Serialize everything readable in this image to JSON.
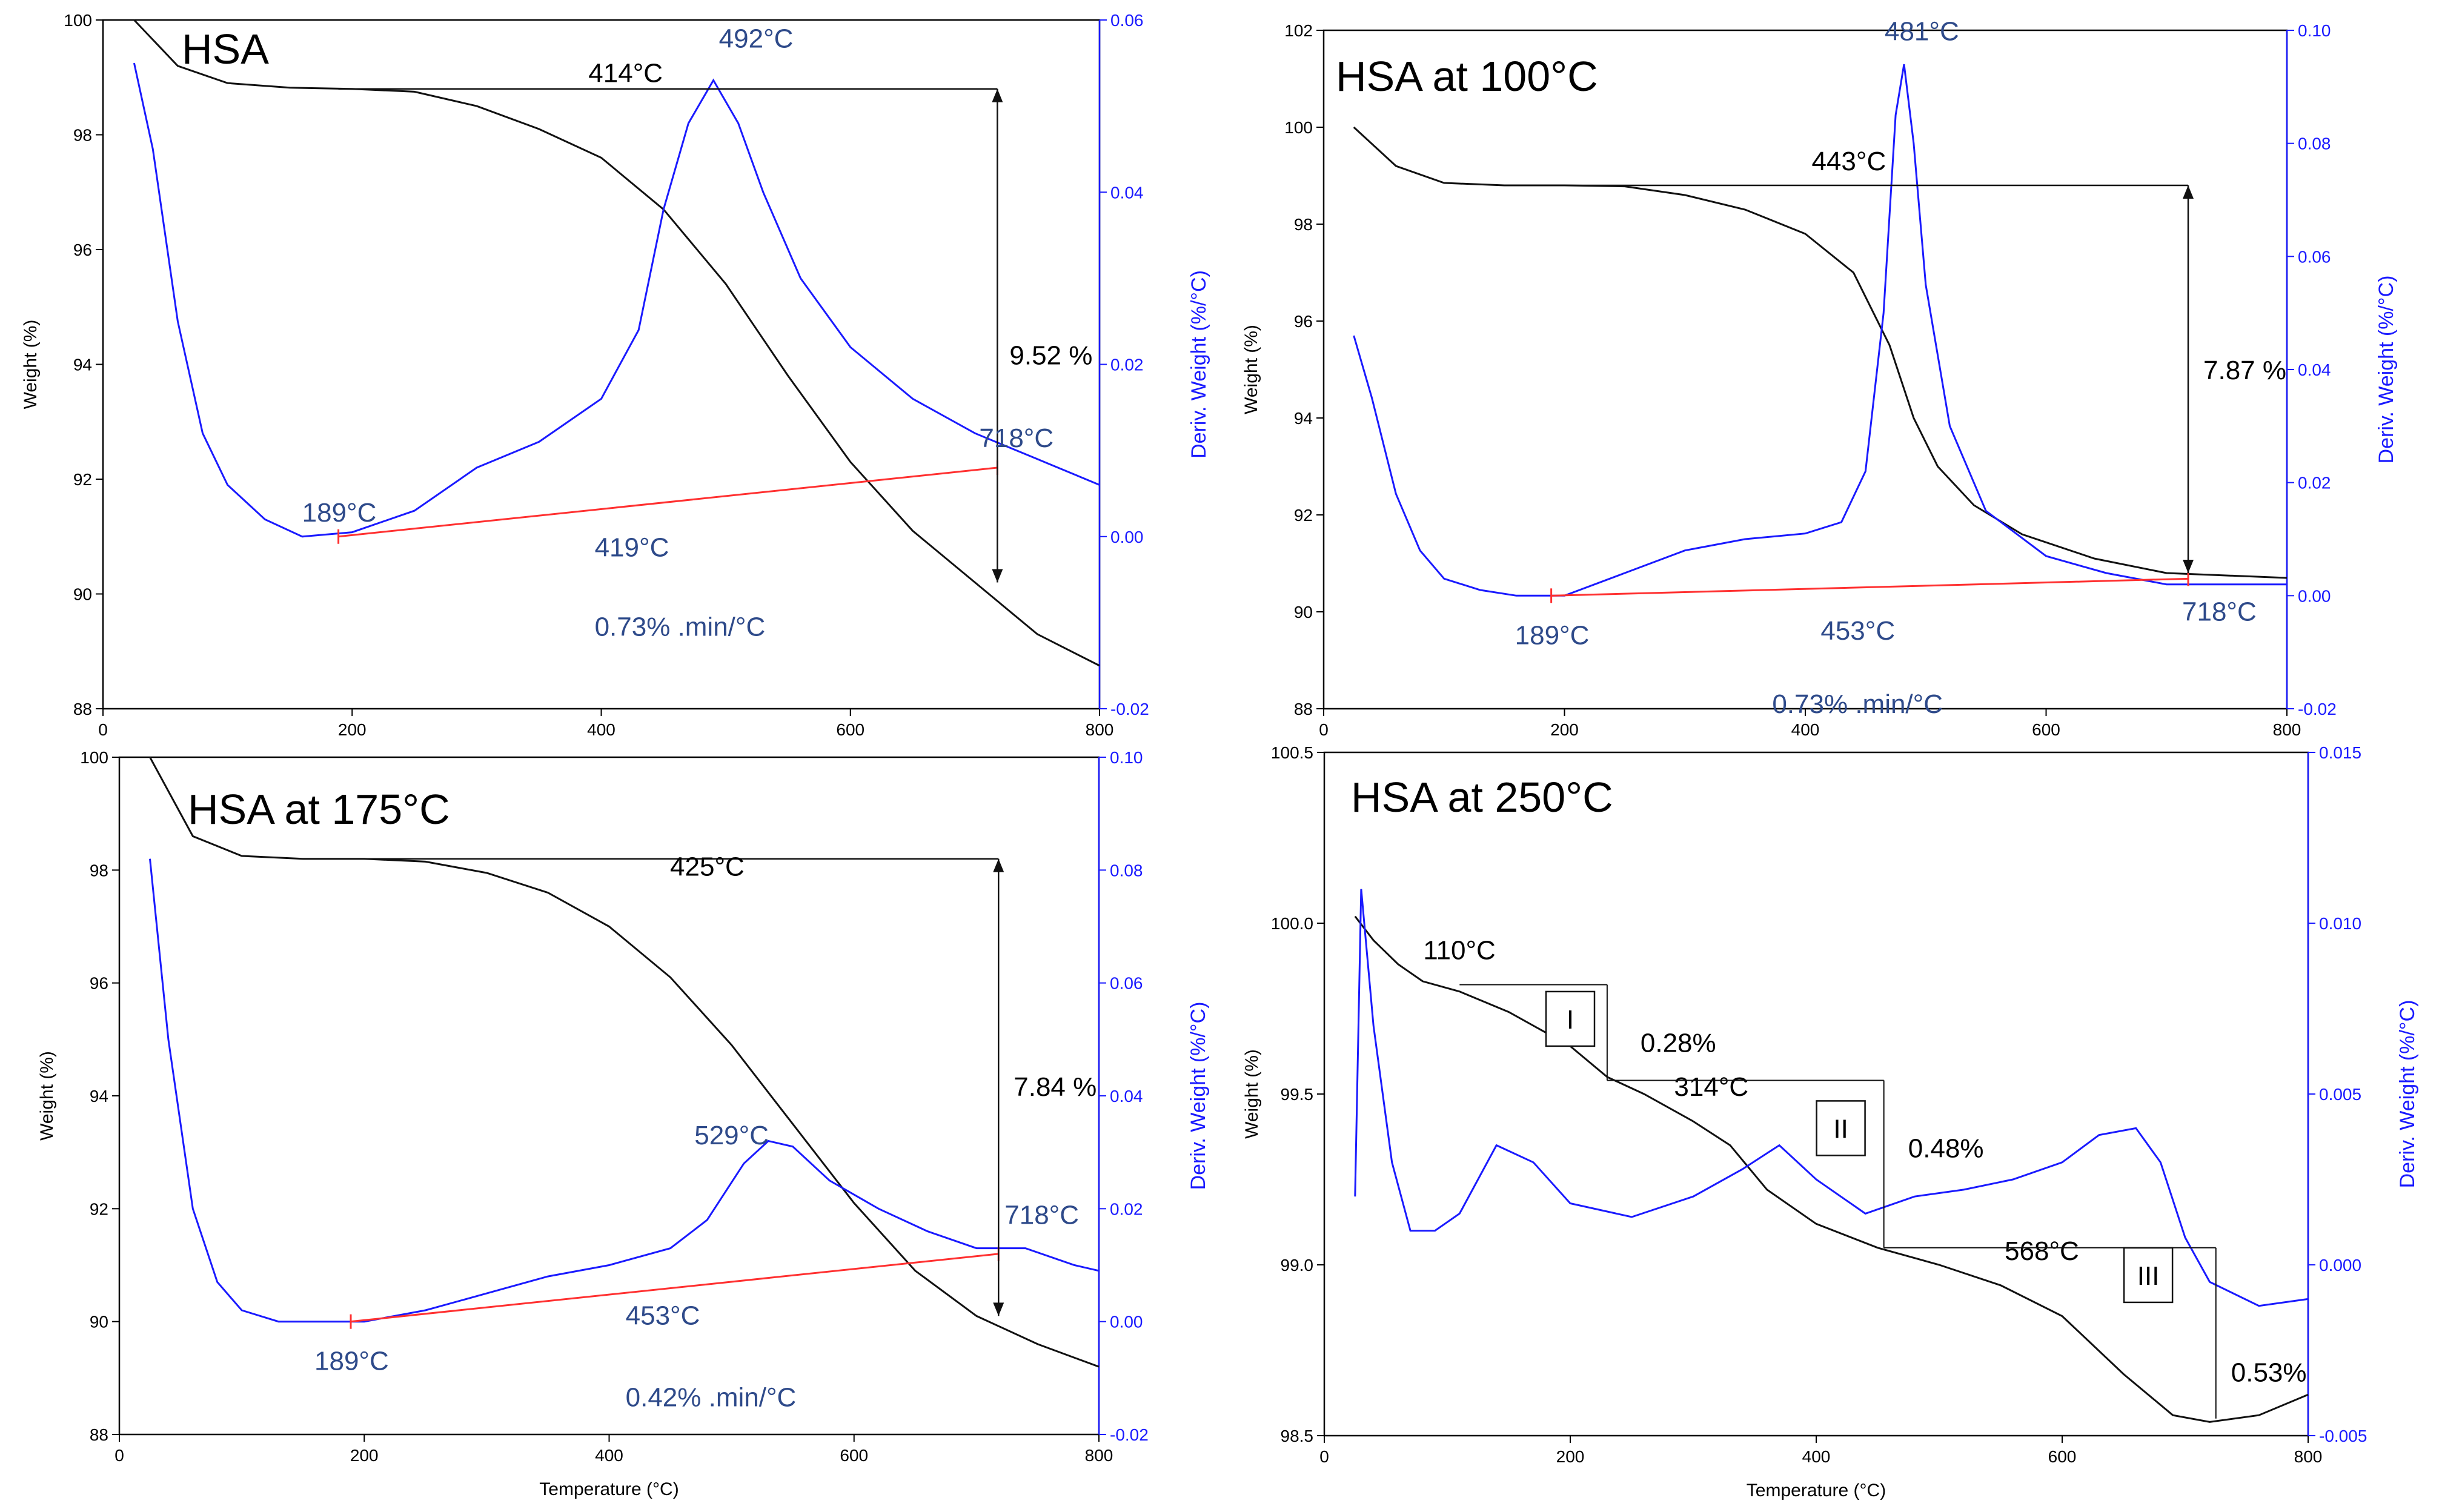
{
  "chart_data": [
    {
      "type": "line",
      "title": "HSA",
      "xlabel": "",
      "ylabel": "Weight (%)",
      "y2label": "Deriv. Weight (%/°C)",
      "xlim": [
        0,
        800
      ],
      "ylim": [
        88,
        100
      ],
      "y2lim": [
        -0.02,
        0.06
      ],
      "xticks": [
        "0",
        "200",
        "400",
        "600",
        "800"
      ],
      "yticks": [
        "88",
        "90",
        "92",
        "94",
        "96",
        "98",
        "100"
      ],
      "y2ticks": [
        "-0.02",
        "0.00",
        "0.02",
        "0.04",
        "0.06"
      ],
      "weight_curve": [
        [
          25,
          100
        ],
        [
          60,
          99.2
        ],
        [
          100,
          98.9
        ],
        [
          150,
          98.82
        ],
        [
          200,
          98.8
        ],
        [
          250,
          98.75
        ],
        [
          300,
          98.5
        ],
        [
          350,
          98.1
        ],
        [
          400,
          97.6
        ],
        [
          450,
          96.7
        ],
        [
          500,
          95.4
        ],
        [
          550,
          93.8
        ],
        [
          600,
          92.3
        ],
        [
          650,
          91.1
        ],
        [
          700,
          90.2
        ],
        [
          750,
          89.3
        ],
        [
          800,
          88.75
        ]
      ],
      "deriv_curve": [
        [
          25,
          0.055
        ],
        [
          40,
          0.045
        ],
        [
          60,
          0.025
        ],
        [
          80,
          0.012
        ],
        [
          100,
          0.006
        ],
        [
          130,
          0.002
        ],
        [
          160,
          0.0
        ],
        [
          200,
          0.0005
        ],
        [
          250,
          0.003
        ],
        [
          300,
          0.008
        ],
        [
          350,
          0.011
        ],
        [
          400,
          0.016
        ],
        [
          430,
          0.024
        ],
        [
          450,
          0.038
        ],
        [
          470,
          0.048
        ],
        [
          490,
          0.053
        ],
        [
          510,
          0.048
        ],
        [
          530,
          0.04
        ],
        [
          560,
          0.03
        ],
        [
          600,
          0.022
        ],
        [
          650,
          0.016
        ],
        [
          700,
          0.012
        ],
        [
          750,
          0.009
        ],
        [
          800,
          0.006
        ]
      ],
      "baseline": [
        [
          189,
          0.0
        ],
        [
          718,
          0.008
        ]
      ],
      "annotations": [
        {
          "text": "414°C",
          "x": 414,
          "y": 98.6
        },
        {
          "text": "492°C",
          "x": 492,
          "y": 0.054
        },
        {
          "text": "189°C",
          "x": 189,
          "y": 0.0
        },
        {
          "text": "419°C",
          "x": 419,
          "y": 91.5
        },
        {
          "text": "0.73% .min/°C",
          "x": 419,
          "y": 90.8
        },
        {
          "text": "718°C",
          "x": 718,
          "y": 0.009
        },
        {
          "text": "9.52 %",
          "x": 718,
          "y": 94
        }
      ]
    },
    {
      "type": "line",
      "title": "HSA at 100°C",
      "xlabel": "",
      "ylabel": "Weight (%)",
      "y2label": "Deriv. Weight (%/°C)",
      "xlim": [
        0,
        800
      ],
      "ylim": [
        88,
        102
      ],
      "y2lim": [
        -0.02,
        0.1
      ],
      "xticks": [
        "0",
        "200",
        "400",
        "600",
        "800"
      ],
      "yticks": [
        "88",
        "90",
        "92",
        "94",
        "96",
        "98",
        "100",
        "102"
      ],
      "y2ticks": [
        "-0.02",
        "0.00",
        "0.02",
        "0.04",
        "0.06",
        "0.08",
        "0.10"
      ],
      "weight_curve": [
        [
          25,
          100
        ],
        [
          60,
          99.2
        ],
        [
          100,
          98.85
        ],
        [
          150,
          98.8
        ],
        [
          200,
          98.8
        ],
        [
          250,
          98.78
        ],
        [
          300,
          98.6
        ],
        [
          350,
          98.3
        ],
        [
          400,
          97.8
        ],
        [
          440,
          97.0
        ],
        [
          470,
          95.5
        ],
        [
          490,
          94.0
        ],
        [
          510,
          93.0
        ],
        [
          540,
          92.2
        ],
        [
          580,
          91.6
        ],
        [
          640,
          91.1
        ],
        [
          700,
          90.8
        ],
        [
          800,
          90.7
        ]
      ],
      "deriv_curve": [
        [
          25,
          0.046
        ],
        [
          40,
          0.035
        ],
        [
          60,
          0.018
        ],
        [
          80,
          0.008
        ],
        [
          100,
          0.003
        ],
        [
          130,
          0.001
        ],
        [
          160,
          0.0
        ],
        [
          200,
          0.0
        ],
        [
          250,
          0.004
        ],
        [
          300,
          0.008
        ],
        [
          350,
          0.01
        ],
        [
          400,
          0.011
        ],
        [
          430,
          0.013
        ],
        [
          450,
          0.022
        ],
        [
          465,
          0.05
        ],
        [
          475,
          0.085
        ],
        [
          482,
          0.094
        ],
        [
          490,
          0.08
        ],
        [
          500,
          0.055
        ],
        [
          520,
          0.03
        ],
        [
          550,
          0.015
        ],
        [
          600,
          0.007
        ],
        [
          650,
          0.004
        ],
        [
          700,
          0.002
        ],
        [
          800,
          0.002
        ]
      ],
      "baseline": [
        [
          189,
          0.0
        ],
        [
          718,
          0.003
        ]
      ],
      "annotations": [
        {
          "text": "481°C",
          "x": 481,
          "y": 0.095
        },
        {
          "text": "443°C",
          "x": 443,
          "y": 98.8
        },
        {
          "text": "189°C",
          "x": 189,
          "y": 0.0
        },
        {
          "text": "453°C",
          "x": 453,
          "y": 90.3
        },
        {
          "text": "0.73% .min/°C",
          "x": 453,
          "y": 89.6
        },
        {
          "text": "718°C",
          "x": 718,
          "y": 0.002
        },
        {
          "text": "7.87 %",
          "x": 718,
          "y": 94.8
        }
      ]
    },
    {
      "type": "line",
      "title": "HSA at 175°C",
      "xlabel": "Temperature (°C)",
      "ylabel": "Weight (%)",
      "y2label": "Deriv. Weight (%/°C)",
      "xlim": [
        0,
        800
      ],
      "ylim": [
        88,
        100
      ],
      "y2lim": [
        -0.02,
        0.1
      ],
      "xticks": [
        "0",
        "200",
        "400",
        "600",
        "800"
      ],
      "yticks": [
        "88",
        "90",
        "92",
        "94",
        "96",
        "98",
        "100"
      ],
      "y2ticks": [
        "-0.02",
        "0.00",
        "0.02",
        "0.04",
        "0.06",
        "0.08",
        "0.10"
      ],
      "weight_curve": [
        [
          25,
          100
        ],
        [
          60,
          98.6
        ],
        [
          100,
          98.25
        ],
        [
          150,
          98.2
        ],
        [
          200,
          98.2
        ],
        [
          250,
          98.15
        ],
        [
          300,
          97.95
        ],
        [
          350,
          97.6
        ],
        [
          400,
          97.0
        ],
        [
          450,
          96.1
        ],
        [
          500,
          94.9
        ],
        [
          550,
          93.5
        ],
        [
          600,
          92.1
        ],
        [
          650,
          90.9
        ],
        [
          700,
          90.1
        ],
        [
          750,
          89.6
        ],
        [
          800,
          89.2
        ]
      ],
      "deriv_curve": [
        [
          25,
          0.082
        ],
        [
          40,
          0.05
        ],
        [
          60,
          0.02
        ],
        [
          80,
          0.007
        ],
        [
          100,
          0.002
        ],
        [
          130,
          0.0
        ],
        [
          160,
          0.0
        ],
        [
          200,
          0.0
        ],
        [
          250,
          0.002
        ],
        [
          300,
          0.005
        ],
        [
          350,
          0.008
        ],
        [
          400,
          0.01
        ],
        [
          450,
          0.013
        ],
        [
          480,
          0.018
        ],
        [
          510,
          0.028
        ],
        [
          530,
          0.032
        ],
        [
          550,
          0.031
        ],
        [
          580,
          0.025
        ],
        [
          620,
          0.02
        ],
        [
          660,
          0.016
        ],
        [
          700,
          0.013
        ],
        [
          740,
          0.013
        ],
        [
          780,
          0.01
        ],
        [
          800,
          0.009
        ]
      ],
      "baseline": [
        [
          189,
          0.0
        ],
        [
          718,
          0.012
        ]
      ],
      "annotations": [
        {
          "text": "425°C",
          "x": 425,
          "y": 97.9
        },
        {
          "text": "529°C",
          "x": 529,
          "y": 0.033
        },
        {
          "text": "189°C",
          "x": 189,
          "y": 0.0
        },
        {
          "text": "453°C",
          "x": 453,
          "y": 90.7
        },
        {
          "text": "0.42% .min/°C",
          "x": 453,
          "y": 90.0
        },
        {
          "text": "718°C",
          "x": 718,
          "y": 0.013
        },
        {
          "text": "7.84 %",
          "x": 718,
          "y": 94
        }
      ]
    },
    {
      "type": "line",
      "title": "HSA at 250°C",
      "xlabel": "Temperature (°C)",
      "ylabel": "Weight (%)",
      "y2label": "Deriv. Weight (%/°C)",
      "xlim": [
        0,
        800
      ],
      "ylim": [
        98.5,
        100.5
      ],
      "y2lim": [
        -0.005,
        0.015
      ],
      "xticks": [
        "0",
        "200",
        "400",
        "600",
        "800"
      ],
      "yticks": [
        "98.5",
        "99.0",
        "99.5",
        "100.0",
        "100.5"
      ],
      "y2ticks": [
        "-0.005",
        "0.000",
        "0.005",
        "0.010",
        "0.015"
      ],
      "weight_curve": [
        [
          25,
          100.02
        ],
        [
          40,
          99.95
        ],
        [
          60,
          99.88
        ],
        [
          80,
          99.83
        ],
        [
          110,
          99.8
        ],
        [
          150,
          99.74
        ],
        [
          200,
          99.64
        ],
        [
          230,
          99.55
        ],
        [
          260,
          99.5
        ],
        [
          300,
          99.42
        ],
        [
          330,
          99.35
        ],
        [
          360,
          99.22
        ],
        [
          400,
          99.12
        ],
        [
          450,
          99.05
        ],
        [
          500,
          99.0
        ],
        [
          550,
          98.94
        ],
        [
          600,
          98.85
        ],
        [
          650,
          98.68
        ],
        [
          690,
          98.56
        ],
        [
          720,
          98.54
        ],
        [
          760,
          98.56
        ],
        [
          800,
          98.62
        ]
      ],
      "deriv_curve": [
        [
          25,
          0.002
        ],
        [
          30,
          0.011
        ],
        [
          40,
          0.007
        ],
        [
          55,
          0.003
        ],
        [
          70,
          0.001
        ],
        [
          90,
          0.001
        ],
        [
          110,
          0.0015
        ],
        [
          140,
          0.0035
        ],
        [
          170,
          0.003
        ],
        [
          200,
          0.0018
        ],
        [
          250,
          0.0014
        ],
        [
          300,
          0.002
        ],
        [
          340,
          0.0028
        ],
        [
          370,
          0.0035
        ],
        [
          400,
          0.0025
        ],
        [
          440,
          0.0015
        ],
        [
          480,
          0.002
        ],
        [
          520,
          0.0022
        ],
        [
          560,
          0.0025
        ],
        [
          600,
          0.003
        ],
        [
          630,
          0.0038
        ],
        [
          660,
          0.004
        ],
        [
          680,
          0.003
        ],
        [
          700,
          0.0008
        ],
        [
          720,
          -0.0005
        ],
        [
          760,
          -0.0012
        ],
        [
          800,
          -0.001
        ]
      ],
      "annotations": [
        {
          "text": "110°C",
          "x": 110,
          "y": 99.85
        },
        {
          "text": "0.28%",
          "x": 230,
          "y": 99.65
        },
        {
          "text": "314°C",
          "x": 314,
          "y": 99.45
        },
        {
          "text": "0.48%",
          "x": 460,
          "y": 99.35
        },
        {
          "text": "568°C",
          "x": 568,
          "y": 98.97
        },
        {
          "text": "0.53%",
          "x": 725,
          "y": 98.65
        }
      ],
      "step_labels": [
        "I",
        "II",
        "III"
      ]
    }
  ]
}
